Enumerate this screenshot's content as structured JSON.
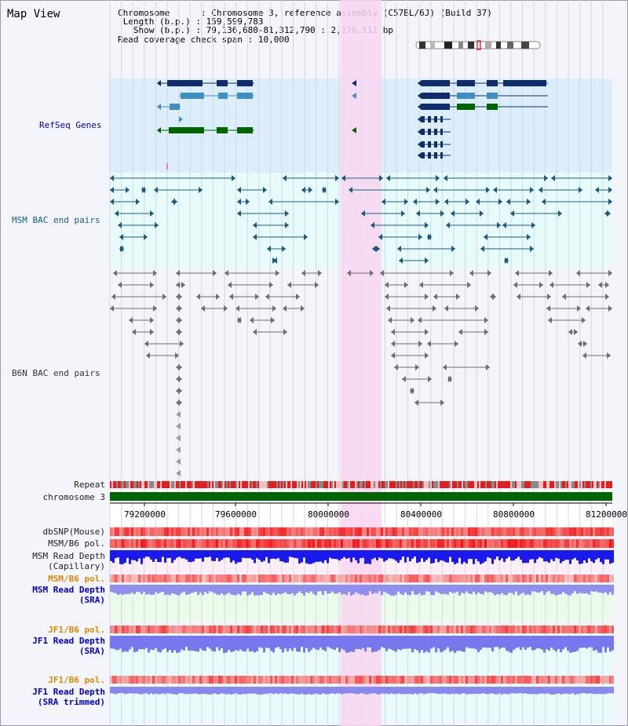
{
  "title": "Map View",
  "info": {
    "chromosome_key": "Chromosome",
    "chromosome_val": "Chromosome 3, reference assembly (C57BL/6J) (Build 37)",
    "length_key": "Length (b.p.)",
    "length_val": "159,599,783",
    "show_key": "Show (b.p.)",
    "show_val": "79,136,680-81,312,790 : 2,176,111 bp",
    "span_key": "Read coverage check span",
    "span_val": "10,000"
  },
  "tracks": {
    "refseq": "RefSeq Genes",
    "msm_bac": "MSM BAC end pairs",
    "b6n_bac": "B6N BAC end pairs",
    "repeat": "Repeat",
    "chromosome": "chromosome 3",
    "dbsnp": "dbSNP(Mouse)",
    "msm_b6_pol": "MSM/B6 pol.",
    "msm_depth_cap_1": "MSM Read Depth",
    "msm_depth_cap_2": "(Capillary)",
    "msm_b6_pol_2": "MSM/B6 pol.",
    "msm_depth_sra_1": "MSM Read Depth",
    "msm_depth_sra_2": "(SRA)",
    "jf1_b6_pol": "JF1/B6 pol.",
    "jf1_depth_sra_1": "JF1 Read Depth",
    "jf1_depth_sra_2": "(SRA)",
    "jf1_b6_pol_2": "JF1/B6 pol.",
    "jf1_depth_trim_1": "JF1 Read Depth",
    "jf1_depth_trim_2": "(SRA trimmed)"
  },
  "axis_ticks": [
    "79200000",
    "79600000",
    "80000000",
    "80400000",
    "80800000",
    "81200000"
  ],
  "colors": {
    "gene_dark": "#0e2d6a",
    "gene_mid": "#3f8fc0",
    "gene_green": "#006400",
    "highlight": "#f8d6f0",
    "refseq_bg": "#dbeefa",
    "msm_bg": "#e6fbfa",
    "repeat_red": "#e02020",
    "chrom_green": "#006400",
    "depth_blue": "#1a1aee"
  }
}
